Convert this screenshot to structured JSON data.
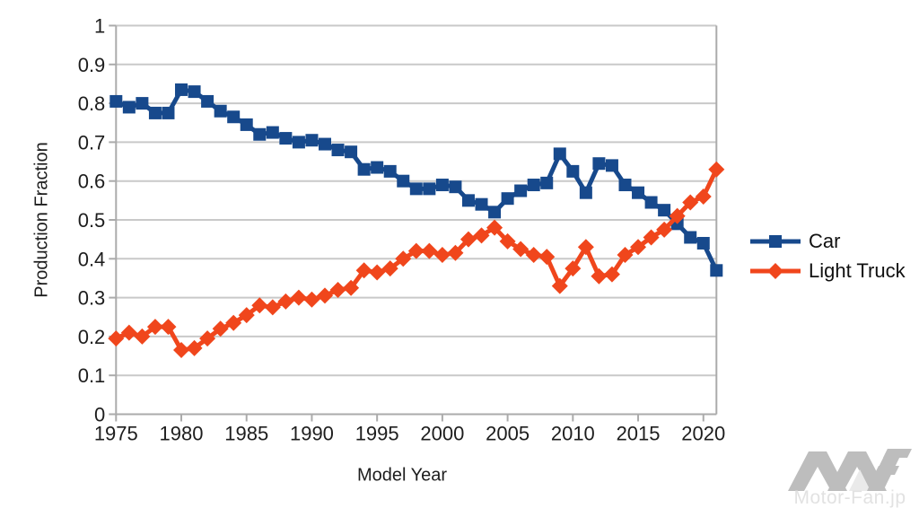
{
  "chart_data": {
    "type": "line",
    "x": [
      1975,
      1976,
      1977,
      1978,
      1979,
      1980,
      1981,
      1982,
      1983,
      1984,
      1985,
      1986,
      1987,
      1988,
      1989,
      1990,
      1991,
      1992,
      1993,
      1994,
      1995,
      1996,
      1997,
      1998,
      1999,
      2000,
      2001,
      2002,
      2003,
      2004,
      2005,
      2006,
      2007,
      2008,
      2009,
      2010,
      2011,
      2012,
      2013,
      2014,
      2015,
      2016,
      2017,
      2018,
      2019,
      2020,
      2021
    ],
    "series": [
      {
        "name": "Car",
        "color": "#17498c",
        "marker": "square",
        "values": [
          0.805,
          0.79,
          0.8,
          0.775,
          0.775,
          0.835,
          0.83,
          0.805,
          0.78,
          0.765,
          0.745,
          0.72,
          0.725,
          0.71,
          0.7,
          0.705,
          0.695,
          0.68,
          0.675,
          0.63,
          0.635,
          0.625,
          0.6,
          0.58,
          0.58,
          0.59,
          0.585,
          0.55,
          0.54,
          0.52,
          0.555,
          0.575,
          0.59,
          0.595,
          0.67,
          0.625,
          0.57,
          0.645,
          0.64,
          0.59,
          0.57,
          0.545,
          0.525,
          0.49,
          0.455,
          0.44,
          0.37
        ]
      },
      {
        "name": "Light Truck",
        "color": "#f0461c",
        "marker": "diamond",
        "values": [
          0.195,
          0.21,
          0.2,
          0.225,
          0.225,
          0.165,
          0.17,
          0.195,
          0.22,
          0.235,
          0.255,
          0.28,
          0.275,
          0.29,
          0.3,
          0.295,
          0.305,
          0.32,
          0.325,
          0.37,
          0.365,
          0.375,
          0.4,
          0.42,
          0.42,
          0.41,
          0.415,
          0.45,
          0.46,
          0.48,
          0.445,
          0.425,
          0.41,
          0.405,
          0.33,
          0.375,
          0.43,
          0.355,
          0.36,
          0.41,
          0.43,
          0.455,
          0.475,
          0.51,
          0.545,
          0.56,
          0.63
        ]
      }
    ],
    "xlabel": "Model Year",
    "ylabel": "Production Fraction",
    "xlim": [
      1975,
      2021
    ],
    "ylim": [
      0,
      1
    ],
    "xticks": [
      1975,
      1980,
      1985,
      1990,
      1995,
      2000,
      2005,
      2010,
      2015,
      2020
    ],
    "yticks": [
      0,
      0.1,
      0.2,
      0.3,
      0.4,
      0.5,
      0.6,
      0.7,
      0.8,
      0.9,
      1
    ],
    "ytick_labels": [
      "0",
      "0.1",
      "0.2",
      "0.3",
      "0.4",
      "0.5",
      "0.6",
      "0.7",
      "0.8",
      "0.9",
      "1"
    ],
    "grid": "horizontal",
    "legend_position": "right"
  },
  "colors": {
    "grid": "#c9c9c9",
    "axis": "#ababab",
    "tick_text": "#1d1d1d",
    "watermark_logo": "#bdbdbd",
    "watermark_logo_light": "#eaeaea",
    "watermark_text": "#e2e2e2"
  },
  "watermark": {
    "text": "Motor-Fan.jp"
  }
}
